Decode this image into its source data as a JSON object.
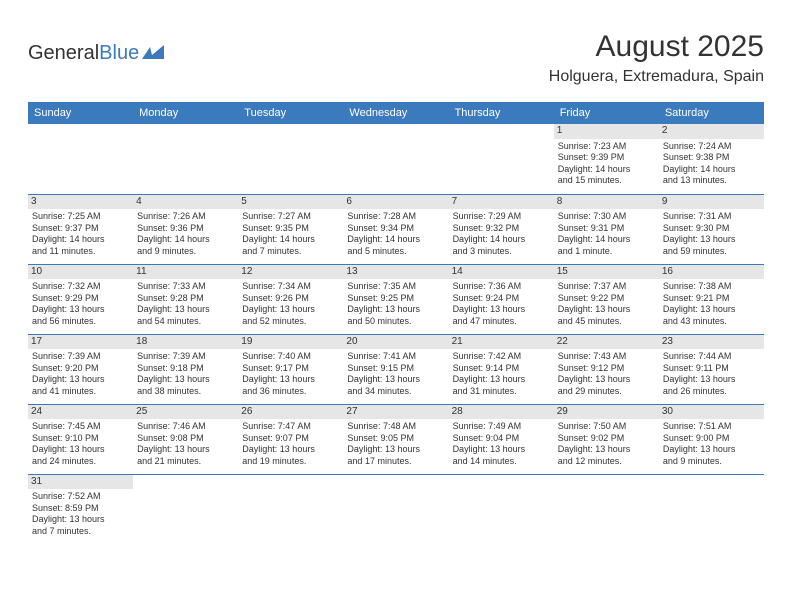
{
  "logo": {
    "text1": "General",
    "text2": "Blue"
  },
  "title": "August 2025",
  "location": "Holguera, Extremadura, Spain",
  "colors": {
    "header_bg": "#3a7abd",
    "header_text": "#ffffff",
    "rule": "#3a7abd",
    "daynum_bg": "#e6e6e6",
    "text": "#333333",
    "background": "#ffffff"
  },
  "day_headers": [
    "Sunday",
    "Monday",
    "Tuesday",
    "Wednesday",
    "Thursday",
    "Friday",
    "Saturday"
  ],
  "weeks": [
    [
      null,
      null,
      null,
      null,
      null,
      {
        "n": "1",
        "sr": "Sunrise: 7:23 AM",
        "ss": "Sunset: 9:39 PM",
        "d1": "Daylight: 14 hours",
        "d2": "and 15 minutes."
      },
      {
        "n": "2",
        "sr": "Sunrise: 7:24 AM",
        "ss": "Sunset: 9:38 PM",
        "d1": "Daylight: 14 hours",
        "d2": "and 13 minutes."
      }
    ],
    [
      {
        "n": "3",
        "sr": "Sunrise: 7:25 AM",
        "ss": "Sunset: 9:37 PM",
        "d1": "Daylight: 14 hours",
        "d2": "and 11 minutes."
      },
      {
        "n": "4",
        "sr": "Sunrise: 7:26 AM",
        "ss": "Sunset: 9:36 PM",
        "d1": "Daylight: 14 hours",
        "d2": "and 9 minutes."
      },
      {
        "n": "5",
        "sr": "Sunrise: 7:27 AM",
        "ss": "Sunset: 9:35 PM",
        "d1": "Daylight: 14 hours",
        "d2": "and 7 minutes."
      },
      {
        "n": "6",
        "sr": "Sunrise: 7:28 AM",
        "ss": "Sunset: 9:34 PM",
        "d1": "Daylight: 14 hours",
        "d2": "and 5 minutes."
      },
      {
        "n": "7",
        "sr": "Sunrise: 7:29 AM",
        "ss": "Sunset: 9:32 PM",
        "d1": "Daylight: 14 hours",
        "d2": "and 3 minutes."
      },
      {
        "n": "8",
        "sr": "Sunrise: 7:30 AM",
        "ss": "Sunset: 9:31 PM",
        "d1": "Daylight: 14 hours",
        "d2": "and 1 minute."
      },
      {
        "n": "9",
        "sr": "Sunrise: 7:31 AM",
        "ss": "Sunset: 9:30 PM",
        "d1": "Daylight: 13 hours",
        "d2": "and 59 minutes."
      }
    ],
    [
      {
        "n": "10",
        "sr": "Sunrise: 7:32 AM",
        "ss": "Sunset: 9:29 PM",
        "d1": "Daylight: 13 hours",
        "d2": "and 56 minutes."
      },
      {
        "n": "11",
        "sr": "Sunrise: 7:33 AM",
        "ss": "Sunset: 9:28 PM",
        "d1": "Daylight: 13 hours",
        "d2": "and 54 minutes."
      },
      {
        "n": "12",
        "sr": "Sunrise: 7:34 AM",
        "ss": "Sunset: 9:26 PM",
        "d1": "Daylight: 13 hours",
        "d2": "and 52 minutes."
      },
      {
        "n": "13",
        "sr": "Sunrise: 7:35 AM",
        "ss": "Sunset: 9:25 PM",
        "d1": "Daylight: 13 hours",
        "d2": "and 50 minutes."
      },
      {
        "n": "14",
        "sr": "Sunrise: 7:36 AM",
        "ss": "Sunset: 9:24 PM",
        "d1": "Daylight: 13 hours",
        "d2": "and 47 minutes."
      },
      {
        "n": "15",
        "sr": "Sunrise: 7:37 AM",
        "ss": "Sunset: 9:22 PM",
        "d1": "Daylight: 13 hours",
        "d2": "and 45 minutes."
      },
      {
        "n": "16",
        "sr": "Sunrise: 7:38 AM",
        "ss": "Sunset: 9:21 PM",
        "d1": "Daylight: 13 hours",
        "d2": "and 43 minutes."
      }
    ],
    [
      {
        "n": "17",
        "sr": "Sunrise: 7:39 AM",
        "ss": "Sunset: 9:20 PM",
        "d1": "Daylight: 13 hours",
        "d2": "and 41 minutes."
      },
      {
        "n": "18",
        "sr": "Sunrise: 7:39 AM",
        "ss": "Sunset: 9:18 PM",
        "d1": "Daylight: 13 hours",
        "d2": "and 38 minutes."
      },
      {
        "n": "19",
        "sr": "Sunrise: 7:40 AM",
        "ss": "Sunset: 9:17 PM",
        "d1": "Daylight: 13 hours",
        "d2": "and 36 minutes."
      },
      {
        "n": "20",
        "sr": "Sunrise: 7:41 AM",
        "ss": "Sunset: 9:15 PM",
        "d1": "Daylight: 13 hours",
        "d2": "and 34 minutes."
      },
      {
        "n": "21",
        "sr": "Sunrise: 7:42 AM",
        "ss": "Sunset: 9:14 PM",
        "d1": "Daylight: 13 hours",
        "d2": "and 31 minutes."
      },
      {
        "n": "22",
        "sr": "Sunrise: 7:43 AM",
        "ss": "Sunset: 9:12 PM",
        "d1": "Daylight: 13 hours",
        "d2": "and 29 minutes."
      },
      {
        "n": "23",
        "sr": "Sunrise: 7:44 AM",
        "ss": "Sunset: 9:11 PM",
        "d1": "Daylight: 13 hours",
        "d2": "and 26 minutes."
      }
    ],
    [
      {
        "n": "24",
        "sr": "Sunrise: 7:45 AM",
        "ss": "Sunset: 9:10 PM",
        "d1": "Daylight: 13 hours",
        "d2": "and 24 minutes."
      },
      {
        "n": "25",
        "sr": "Sunrise: 7:46 AM",
        "ss": "Sunset: 9:08 PM",
        "d1": "Daylight: 13 hours",
        "d2": "and 21 minutes."
      },
      {
        "n": "26",
        "sr": "Sunrise: 7:47 AM",
        "ss": "Sunset: 9:07 PM",
        "d1": "Daylight: 13 hours",
        "d2": "and 19 minutes."
      },
      {
        "n": "27",
        "sr": "Sunrise: 7:48 AM",
        "ss": "Sunset: 9:05 PM",
        "d1": "Daylight: 13 hours",
        "d2": "and 17 minutes."
      },
      {
        "n": "28",
        "sr": "Sunrise: 7:49 AM",
        "ss": "Sunset: 9:04 PM",
        "d1": "Daylight: 13 hours",
        "d2": "and 14 minutes."
      },
      {
        "n": "29",
        "sr": "Sunrise: 7:50 AM",
        "ss": "Sunset: 9:02 PM",
        "d1": "Daylight: 13 hours",
        "d2": "and 12 minutes."
      },
      {
        "n": "30",
        "sr": "Sunrise: 7:51 AM",
        "ss": "Sunset: 9:00 PM",
        "d1": "Daylight: 13 hours",
        "d2": "and 9 minutes."
      }
    ],
    [
      {
        "n": "31",
        "sr": "Sunrise: 7:52 AM",
        "ss": "Sunset: 8:59 PM",
        "d1": "Daylight: 13 hours",
        "d2": "and 7 minutes."
      },
      null,
      null,
      null,
      null,
      null,
      null
    ]
  ]
}
